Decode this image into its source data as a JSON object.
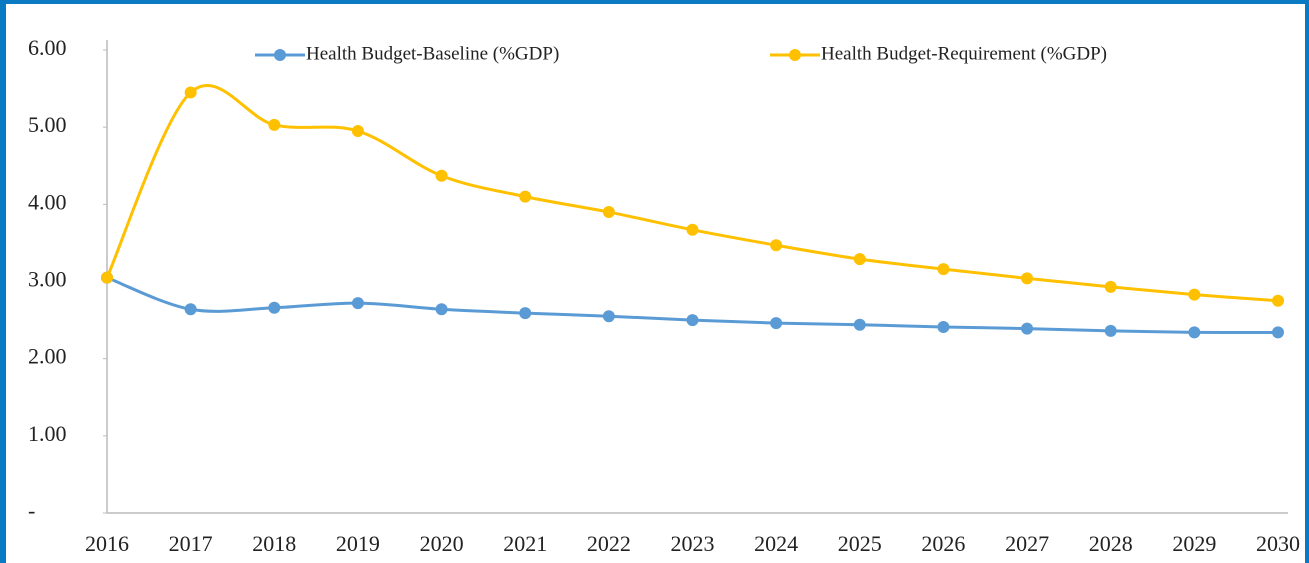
{
  "chart_data": {
    "type": "line",
    "categories": [
      "2016",
      "2017",
      "2018",
      "2019",
      "2020",
      "2021",
      "2022",
      "2023",
      "2024",
      "2025",
      "2026",
      "2027",
      "2028",
      "2029",
      "2030"
    ],
    "series": [
      {
        "name": "Health Budget-Baseline (%GDP)",
        "color": "#5b9bd5",
        "values": [
          3.05,
          2.64,
          2.66,
          2.72,
          2.64,
          2.59,
          2.55,
          2.5,
          2.46,
          2.44,
          2.41,
          2.39,
          2.36,
          2.34,
          2.34
        ]
      },
      {
        "name": "Health Budget-Requirement (%GDP)",
        "color": "#ffc000",
        "values": [
          3.05,
          5.45,
          5.03,
          4.95,
          4.37,
          4.1,
          3.9,
          3.67,
          3.47,
          3.29,
          3.16,
          3.04,
          2.93,
          2.83,
          2.75
        ]
      }
    ],
    "ylim": [
      0,
      6
    ],
    "yticks": [
      {
        "value": 0,
        "label": "-"
      },
      {
        "value": 1,
        "label": "1.00"
      },
      {
        "value": 2,
        "label": "2.00"
      },
      {
        "value": 3,
        "label": "3.00"
      },
      {
        "value": 4,
        "label": "4.00"
      },
      {
        "value": 5,
        "label": "5.00"
      },
      {
        "value": 6,
        "label": "6.00"
      }
    ],
    "legend": "top"
  }
}
